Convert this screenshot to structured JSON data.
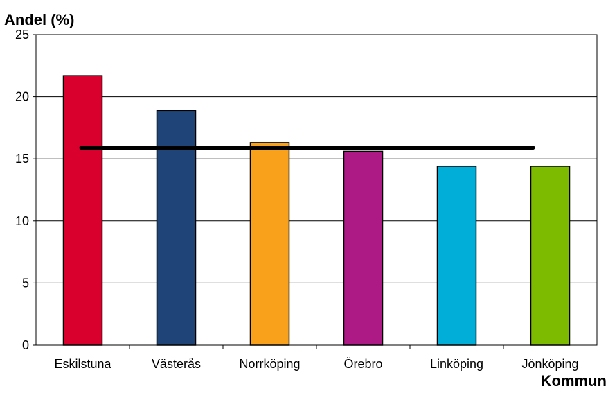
{
  "chart_data": {
    "type": "bar",
    "ylabel": "Andel (%)",
    "xlabel": "Kommun",
    "categories": [
      "Eskilstuna",
      "Västerås",
      "Norrköping",
      "Örebro",
      "Linköping",
      "Jönköping"
    ],
    "values": [
      21.7,
      18.9,
      16.3,
      15.6,
      14.4,
      14.4
    ],
    "colors": [
      "#d9002d",
      "#1f4478",
      "#f9a11b",
      "#ad1a86",
      "#00aed8",
      "#7dbb00"
    ],
    "reference_line": {
      "value": 15.9,
      "color": "#000000"
    },
    "ylim": [
      0,
      25
    ],
    "yticks": [
      "0",
      "5",
      "10",
      "15",
      "20",
      "25"
    ],
    "grid": true
  }
}
